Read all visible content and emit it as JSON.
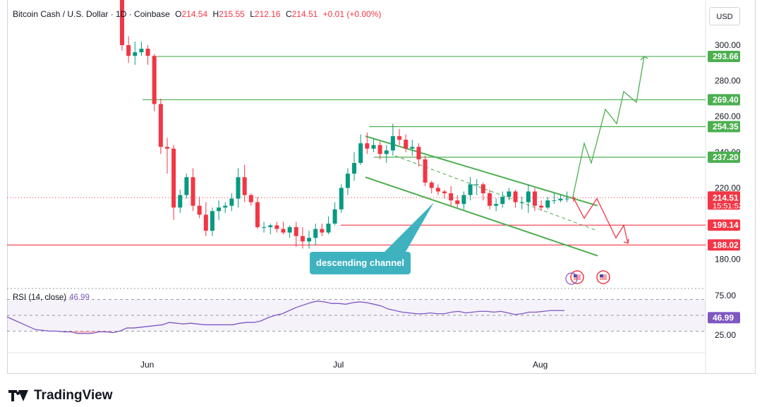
{
  "header": {
    "symbol": "Bitcoin Cash / U.S. Dollar · 1D · Coinbase",
    "open_label": "O",
    "open": "214.54",
    "high_label": "H",
    "high": "215.55",
    "low_label": "L",
    "low": "212.16",
    "close_label": "C",
    "close": "214.51",
    "change": "+0.01 (+0.00%)"
  },
  "currency_button": "USD",
  "rsi": {
    "label": "RSI (14, close)",
    "value": "46.99"
  },
  "annotation": "descending channel",
  "brand": "TradingView",
  "colors": {
    "up": "#089981",
    "down": "#f23645",
    "green_line": "#4caf50",
    "red_line": "#f23645",
    "rsi_line": "#7e57c2",
    "annot_bg": "#3fb2c0"
  },
  "chart_data": {
    "type": "candlestick",
    "price_axis": {
      "ticks": [
        300,
        280,
        260,
        240,
        220,
        200,
        180
      ],
      "tick_labels": [
        "300.00",
        "280.00",
        "260.00",
        "240.00",
        "220.00",
        "",
        "180.00"
      ]
    },
    "time_axis": {
      "ticks": [
        "Jun",
        "Jul",
        "Aug"
      ]
    },
    "price_labels": [
      {
        "value": 293.66,
        "label": "293.66",
        "kind": "green"
      },
      {
        "value": 269.4,
        "label": "269.40",
        "kind": "green"
      },
      {
        "value": 254.35,
        "label": "254.35",
        "kind": "green"
      },
      {
        "value": 237.2,
        "label": "237.20",
        "kind": "green"
      },
      {
        "value": 214.51,
        "label": "214.51",
        "sub": "15:51:53",
        "kind": "last"
      },
      {
        "value": 199.14,
        "label": "199.14",
        "kind": "red"
      },
      {
        "value": 188.02,
        "label": "188.02",
        "kind": "red"
      }
    ],
    "candles": [
      [
        336,
        300,
        336,
        297
      ],
      [
        300,
        294,
        305,
        290
      ],
      [
        294,
        296,
        302,
        289
      ],
      [
        296,
        298,
        302,
        294
      ],
      [
        298,
        294,
        300,
        289
      ],
      [
        294,
        267,
        295,
        263
      ],
      [
        267,
        243,
        270,
        239
      ],
      [
        243,
        242,
        248,
        228
      ],
      [
        242,
        209,
        244,
        202
      ],
      [
        209,
        216,
        219,
        206
      ],
      [
        216,
        226,
        228,
        214
      ],
      [
        226,
        210,
        231,
        207
      ],
      [
        210,
        205,
        215,
        203
      ],
      [
        205,
        196,
        212,
        193
      ],
      [
        196,
        207,
        209,
        193
      ],
      [
        207,
        209,
        213,
        202
      ],
      [
        209,
        210,
        212,
        206
      ],
      [
        210,
        214,
        217,
        207
      ],
      [
        214,
        226,
        231,
        209
      ],
      [
        226,
        216,
        233,
        212
      ],
      [
        216,
        212,
        217,
        210
      ],
      [
        212,
        198,
        215,
        197
      ],
      [
        198,
        198,
        201,
        195
      ],
      [
        198,
        199,
        200,
        194
      ],
      [
        199,
        197,
        201,
        195
      ],
      [
        197,
        195,
        201,
        194
      ],
      [
        195,
        198,
        199,
        192
      ],
      [
        198,
        193,
        201,
        187
      ],
      [
        193,
        190,
        198,
        186
      ],
      [
        190,
        192,
        196,
        186
      ],
      [
        192,
        197,
        200,
        188
      ],
      [
        197,
        195,
        200,
        193
      ],
      [
        195,
        200,
        204,
        194
      ],
      [
        200,
        208,
        212,
        199
      ],
      [
        208,
        220,
        222,
        206
      ],
      [
        220,
        228,
        231,
        216
      ],
      [
        228,
        234,
        240,
        224
      ],
      [
        234,
        245,
        250,
        233
      ],
      [
        245,
        242,
        251,
        239
      ],
      [
        242,
        244,
        248,
        240
      ],
      [
        244,
        239,
        246,
        236
      ],
      [
        239,
        241,
        244,
        234
      ],
      [
        241,
        249,
        256,
        238
      ],
      [
        249,
        247,
        253,
        244
      ],
      [
        247,
        242,
        250,
        240
      ],
      [
        242,
        243,
        247,
        238
      ],
      [
        243,
        236,
        245,
        232
      ],
      [
        236,
        223,
        238,
        221
      ],
      [
        223,
        220,
        224,
        217
      ],
      [
        220,
        218,
        222,
        216
      ],
      [
        218,
        217,
        219,
        214
      ],
      [
        217,
        213,
        221,
        210
      ],
      [
        213,
        211,
        216,
        209
      ],
      [
        211,
        216,
        218,
        208
      ],
      [
        216,
        222,
        226,
        213
      ],
      [
        222,
        222,
        225,
        216
      ],
      [
        222,
        217,
        223,
        213
      ],
      [
        217,
        210,
        219,
        208
      ],
      [
        210,
        211,
        214,
        207
      ],
      [
        211,
        215,
        218,
        209
      ],
      [
        215,
        218,
        220,
        213
      ],
      [
        218,
        212,
        219,
        209
      ],
      [
        212,
        212,
        215,
        208
      ],
      [
        212,
        218,
        222,
        206
      ],
      [
        218,
        210,
        220,
        207
      ],
      [
        210,
        209,
        213,
        207
      ],
      [
        209,
        213,
        215,
        208
      ],
      [
        213,
        213,
        217,
        211
      ],
      [
        213,
        214,
        216,
        212
      ],
      [
        214,
        214,
        218,
        212
      ],
      [
        214.54,
        214.51,
        215.55,
        212.16
      ]
    ],
    "channel": {
      "upper": [
        [
          518,
          249
        ],
        [
          847,
          210
        ]
      ],
      "lower": [
        [
          518,
          226
        ],
        [
          847,
          182
        ]
      ],
      "mid": [
        [
          560,
          238
        ],
        [
          847,
          196
        ]
      ]
    },
    "projection_green": [
      [
        812,
        215
      ],
      [
        828,
        245
      ],
      [
        838,
        234
      ],
      [
        858,
        264
      ],
      [
        874,
        256
      ],
      [
        884,
        274
      ],
      [
        902,
        268
      ],
      [
        913,
        293.66
      ]
    ],
    "projection_red": [
      [
        812,
        215
      ],
      [
        828,
        203
      ],
      [
        846,
        214
      ],
      [
        873,
        192
      ],
      [
        884,
        199
      ],
      [
        890,
        189
      ]
    ],
    "horizontal_lines": [
      {
        "value": 293.66,
        "from": 222,
        "color": "green"
      },
      {
        "value": 269.4,
        "from": 202,
        "color": "green"
      },
      {
        "value": 254.35,
        "from": 523,
        "color": "green"
      },
      {
        "value": 237.2,
        "from": 530,
        "color": "green"
      },
      {
        "value": 199.14,
        "from": 483,
        "color": "red"
      },
      {
        "value": 188.02,
        "from": 10,
        "color": "red"
      }
    ],
    "rsi": {
      "ticks": [
        75,
        25
      ],
      "tick_labels": [
        "75.00",
        "25.00"
      ],
      "last": 46.99,
      "values": [
        48,
        44,
        40,
        36,
        32,
        31,
        30,
        30,
        29,
        29,
        27,
        27,
        27,
        29,
        29,
        28,
        30,
        34,
        34,
        35,
        36,
        37,
        38,
        41,
        40,
        39,
        40,
        39,
        38,
        38,
        38,
        38,
        38,
        40,
        41,
        41,
        43,
        47,
        50,
        52,
        56,
        60,
        63,
        66,
        68,
        67,
        65,
        65,
        64,
        66,
        67,
        66,
        64,
        62,
        58,
        56,
        54,
        53,
        52,
        52,
        53,
        52,
        52,
        54,
        55,
        53,
        54,
        55,
        55,
        54,
        55,
        53,
        51,
        52,
        54,
        54,
        55,
        56,
        56,
        56
      ]
    }
  }
}
